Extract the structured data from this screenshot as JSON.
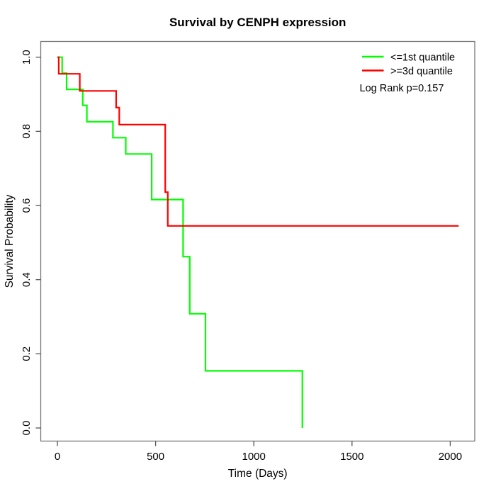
{
  "chart_data": {
    "type": "line",
    "subtype": "kaplan_meier_step",
    "title": "Survival by CENPH expression",
    "xlabel": "Time (Days)",
    "ylabel": "Survival Probability",
    "xlim": [
      0,
      2125
    ],
    "ylim": [
      0.0,
      1.0
    ],
    "x_ticks": [
      0,
      500,
      1000,
      1500,
      2000
    ],
    "x_tick_labels": [
      "0",
      "500",
      "1000",
      "1500",
      "2000"
    ],
    "y_ticks": [
      0.0,
      0.2,
      0.4,
      0.6,
      0.8,
      1.0
    ],
    "y_tick_labels": [
      "0.0",
      "0.2",
      "0.4",
      "0.6",
      "0.8",
      "1.0"
    ],
    "grid": false,
    "legend_position": "top-right",
    "annotation": "Log Rank p=0.157",
    "series": [
      {
        "name": "<=1st quantile",
        "color": "#00ff00",
        "steps": [
          [
            0,
            1.0
          ],
          [
            24,
            0.957
          ],
          [
            47,
            0.913
          ],
          [
            129,
            0.87
          ],
          [
            150,
            0.826
          ],
          [
            283,
            0.783
          ],
          [
            348,
            0.739
          ],
          [
            480,
            0.616
          ],
          [
            640,
            0.462
          ],
          [
            674,
            0.308
          ],
          [
            754,
            0.154
          ],
          [
            1247,
            0.0
          ]
        ]
      },
      {
        "name": ">=3d quantile",
        "color": "#ff0000",
        "steps": [
          [
            0,
            1.0
          ],
          [
            7,
            0.955
          ],
          [
            114,
            0.909
          ],
          [
            299,
            0.864
          ],
          [
            315,
            0.818
          ],
          [
            549,
            0.636
          ],
          [
            562,
            0.545
          ],
          [
            2043,
            0.545
          ]
        ]
      }
    ]
  },
  "colors": {
    "axis_box": "#767676",
    "tick": "#555555",
    "text": "#000000"
  }
}
